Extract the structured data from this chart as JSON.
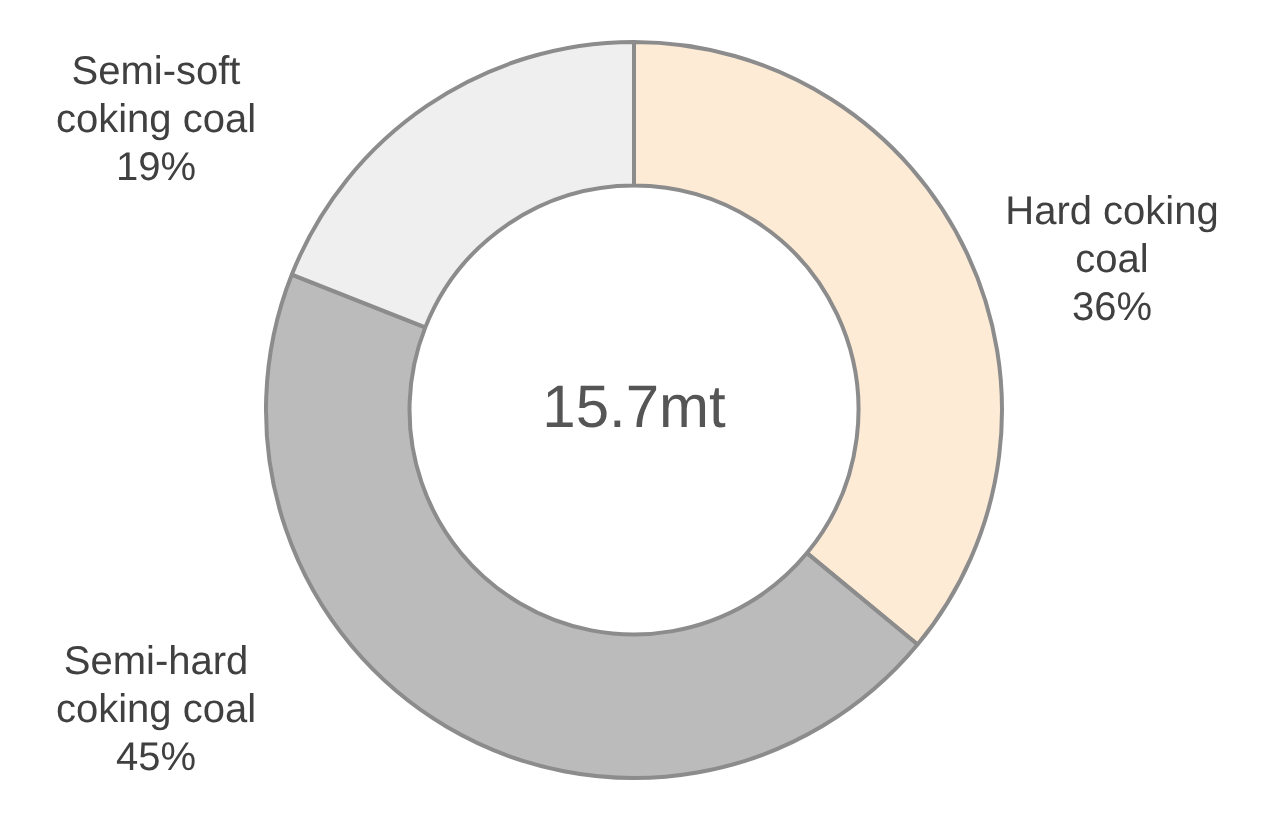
{
  "chart_data": {
    "type": "donut",
    "title": "15.7mt",
    "categories": [
      "Hard coking coal",
      "Semi-hard coking coal",
      "Semi-soft coking coal"
    ],
    "values": [
      36,
      45,
      19
    ],
    "colors": [
      "#fdebd6",
      "#bbbbbb",
      "#efefef"
    ],
    "value_labels": [
      "36%",
      "45%",
      "19%"
    ],
    "legend": false
  }
}
